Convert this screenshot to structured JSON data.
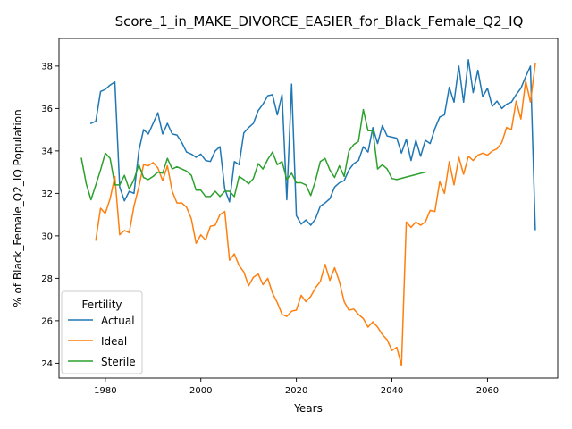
{
  "chart_data": {
    "type": "line",
    "title": "Score_1_in_MAKE_DIVORCE_EASIER_for_Black_Female_Q2_IQ",
    "xlabel": "Years",
    "ylabel": "% of Black_Female_Q2_IQ Population",
    "xlim": [
      1970.3,
      2074.7
    ],
    "ylim": [
      23.3,
      39.3
    ],
    "xticks": [
      1980,
      2000,
      2020,
      2040,
      2060
    ],
    "yticks": [
      24,
      26,
      28,
      30,
      32,
      34,
      36,
      38
    ],
    "grid": false,
    "legend": {
      "title": "Fertility",
      "placement": "lower-left"
    },
    "series": [
      {
        "name": "Actual",
        "color": "#1f77b4",
        "points": [
          [
            1977,
            35.3
          ],
          [
            1978,
            35.4
          ],
          [
            1979,
            36.8
          ],
          [
            1980,
            36.9
          ],
          [
            1981,
            37.1
          ],
          [
            1982,
            37.25
          ],
          [
            1983,
            32.3
          ],
          [
            1984,
            31.65
          ],
          [
            1985,
            32.1
          ],
          [
            1986,
            32.0
          ],
          [
            1987,
            34.0
          ],
          [
            1988,
            35.0
          ],
          [
            1989,
            34.8
          ],
          [
            1990,
            35.3
          ],
          [
            1991,
            35.8
          ],
          [
            1992,
            34.8
          ],
          [
            1993,
            35.3
          ],
          [
            1994,
            34.8
          ],
          [
            1995,
            34.75
          ],
          [
            1996,
            34.4
          ],
          [
            1997,
            33.95
          ],
          [
            1998,
            33.85
          ],
          [
            1999,
            33.7
          ],
          [
            2000,
            33.85
          ],
          [
            2001,
            33.55
          ],
          [
            2002,
            33.5
          ],
          [
            2003,
            34.0
          ],
          [
            2004,
            34.2
          ],
          [
            2005,
            32.2
          ],
          [
            2006,
            31.6
          ],
          [
            2007,
            33.5
          ],
          [
            2008,
            33.35
          ],
          [
            2009,
            34.85
          ],
          [
            2010,
            35.1
          ],
          [
            2011,
            35.3
          ],
          [
            2012,
            35.9
          ],
          [
            2013,
            36.2
          ],
          [
            2014,
            36.6
          ],
          [
            2015,
            36.65
          ],
          [
            2016,
            35.7
          ],
          [
            2017,
            36.65
          ],
          [
            2018,
            31.7
          ],
          [
            2019,
            37.15
          ],
          [
            2020,
            30.95
          ],
          [
            2021,
            30.55
          ],
          [
            2022,
            30.75
          ],
          [
            2023,
            30.5
          ],
          [
            2024,
            30.8
          ],
          [
            2025,
            31.4
          ],
          [
            2026,
            31.55
          ],
          [
            2027,
            31.75
          ],
          [
            2028,
            32.3
          ],
          [
            2029,
            32.5
          ],
          [
            2030,
            32.6
          ],
          [
            2031,
            33.1
          ],
          [
            2032,
            33.4
          ],
          [
            2033,
            33.55
          ],
          [
            2034,
            34.2
          ],
          [
            2035,
            33.95
          ],
          [
            2036,
            35.1
          ],
          [
            2037,
            34.35
          ],
          [
            2038,
            35.2
          ],
          [
            2039,
            34.7
          ],
          [
            2040,
            34.65
          ],
          [
            2041,
            34.6
          ],
          [
            2042,
            33.9
          ],
          [
            2043,
            34.55
          ],
          [
            2044,
            33.55
          ],
          [
            2045,
            34.5
          ],
          [
            2046,
            33.75
          ],
          [
            2047,
            34.5
          ],
          [
            2048,
            34.35
          ],
          [
            2049,
            35.05
          ],
          [
            2050,
            35.6
          ],
          [
            2051,
            35.7
          ],
          [
            2052,
            37.0
          ],
          [
            2053,
            36.3
          ],
          [
            2054,
            38.0
          ],
          [
            2055,
            36.3
          ],
          [
            2056,
            38.3
          ],
          [
            2057,
            36.75
          ],
          [
            2058,
            37.8
          ],
          [
            2059,
            36.55
          ],
          [
            2060,
            36.95
          ],
          [
            2061,
            36.1
          ],
          [
            2062,
            36.35
          ],
          [
            2063,
            36.0
          ],
          [
            2064,
            36.2
          ],
          [
            2065,
            36.3
          ],
          [
            2066,
            36.65
          ],
          [
            2067,
            36.95
          ],
          [
            2068,
            37.5
          ],
          [
            2069,
            38.0
          ],
          [
            2070,
            30.3
          ]
        ]
      },
      {
        "name": "Ideal",
        "color": "#ff7f0e",
        "points": [
          [
            1978,
            29.8
          ],
          [
            1979,
            31.3
          ],
          [
            1980,
            31.05
          ],
          [
            1981,
            31.75
          ],
          [
            1982,
            32.8
          ],
          [
            1983,
            30.05
          ],
          [
            1984,
            30.25
          ],
          [
            1985,
            30.15
          ],
          [
            1986,
            31.4
          ],
          [
            1987,
            32.3
          ],
          [
            1988,
            33.35
          ],
          [
            1989,
            33.3
          ],
          [
            1990,
            33.45
          ],
          [
            1991,
            33.2
          ],
          [
            1992,
            32.6
          ],
          [
            1993,
            33.3
          ],
          [
            1994,
            32.1
          ],
          [
            1995,
            31.55
          ],
          [
            1996,
            31.55
          ],
          [
            1997,
            31.35
          ],
          [
            1998,
            30.8
          ],
          [
            1999,
            29.65
          ],
          [
            2000,
            30.05
          ],
          [
            2001,
            29.8
          ],
          [
            2002,
            30.45
          ],
          [
            2003,
            30.5
          ],
          [
            2004,
            31.0
          ],
          [
            2005,
            31.15
          ],
          [
            2006,
            28.85
          ],
          [
            2007,
            29.15
          ],
          [
            2008,
            28.6
          ],
          [
            2009,
            28.3
          ],
          [
            2010,
            27.65
          ],
          [
            2011,
            28.05
          ],
          [
            2012,
            28.2
          ],
          [
            2013,
            27.7
          ],
          [
            2014,
            28.0
          ],
          [
            2015,
            27.3
          ],
          [
            2016,
            26.85
          ],
          [
            2017,
            26.3
          ],
          [
            2018,
            26.2
          ],
          [
            2019,
            26.45
          ],
          [
            2020,
            26.5
          ],
          [
            2021,
            27.2
          ],
          [
            2022,
            26.9
          ],
          [
            2023,
            27.15
          ],
          [
            2024,
            27.55
          ],
          [
            2025,
            27.85
          ],
          [
            2026,
            28.65
          ],
          [
            2027,
            27.9
          ],
          [
            2028,
            28.5
          ],
          [
            2029,
            27.85
          ],
          [
            2030,
            26.9
          ],
          [
            2031,
            26.5
          ],
          [
            2032,
            26.55
          ],
          [
            2033,
            26.3
          ],
          [
            2034,
            26.1
          ],
          [
            2035,
            25.7
          ],
          [
            2036,
            25.95
          ],
          [
            2037,
            25.7
          ],
          [
            2038,
            25.35
          ],
          [
            2039,
            25.1
          ],
          [
            2040,
            24.6
          ],
          [
            2041,
            24.75
          ],
          [
            2042,
            23.9
          ],
          [
            2043,
            30.65
          ],
          [
            2044,
            30.4
          ],
          [
            2045,
            30.65
          ],
          [
            2046,
            30.5
          ],
          [
            2047,
            30.65
          ],
          [
            2048,
            31.2
          ],
          [
            2049,
            31.15
          ],
          [
            2050,
            32.55
          ],
          [
            2051,
            32.0
          ],
          [
            2052,
            33.5
          ],
          [
            2053,
            32.4
          ],
          [
            2054,
            33.7
          ],
          [
            2055,
            32.9
          ],
          [
            2056,
            33.75
          ],
          [
            2057,
            33.55
          ],
          [
            2058,
            33.8
          ],
          [
            2059,
            33.9
          ],
          [
            2060,
            33.8
          ],
          [
            2061,
            34.0
          ],
          [
            2062,
            34.1
          ],
          [
            2063,
            34.4
          ],
          [
            2064,
            35.1
          ],
          [
            2065,
            35.0
          ],
          [
            2066,
            36.35
          ],
          [
            2067,
            35.5
          ],
          [
            2068,
            37.3
          ],
          [
            2069,
            36.3
          ],
          [
            2070,
            38.1
          ]
        ]
      },
      {
        "name": "Sterile",
        "color": "#2ca02c",
        "points": [
          [
            1975,
            33.65
          ],
          [
            1976,
            32.45
          ],
          [
            1977,
            31.7
          ],
          [
            1978,
            32.4
          ],
          [
            1979,
            33.1
          ],
          [
            1980,
            33.9
          ],
          [
            1981,
            33.65
          ],
          [
            1982,
            32.4
          ],
          [
            1983,
            32.4
          ],
          [
            1984,
            32.85
          ],
          [
            1985,
            32.2
          ],
          [
            1986,
            32.65
          ],
          [
            1987,
            33.35
          ],
          [
            1988,
            32.75
          ],
          [
            1989,
            32.65
          ],
          [
            1990,
            32.8
          ],
          [
            1991,
            33.0
          ],
          [
            1992,
            32.95
          ],
          [
            1993,
            33.65
          ],
          [
            1994,
            33.15
          ],
          [
            1995,
            33.25
          ],
          [
            1996,
            33.15
          ],
          [
            1997,
            33.05
          ],
          [
            1998,
            32.85
          ],
          [
            1999,
            32.15
          ],
          [
            2000,
            32.15
          ],
          [
            2001,
            31.85
          ],
          [
            2002,
            31.85
          ],
          [
            2003,
            32.1
          ],
          [
            2004,
            31.85
          ],
          [
            2005,
            32.1
          ],
          [
            2006,
            32.1
          ],
          [
            2007,
            31.85
          ],
          [
            2008,
            32.8
          ],
          [
            2009,
            32.65
          ],
          [
            2010,
            32.45
          ],
          [
            2011,
            32.7
          ],
          [
            2012,
            33.4
          ],
          [
            2013,
            33.15
          ],
          [
            2014,
            33.6
          ],
          [
            2015,
            33.95
          ],
          [
            2016,
            33.35
          ],
          [
            2017,
            33.5
          ],
          [
            2018,
            32.65
          ],
          [
            2019,
            32.95
          ],
          [
            2020,
            32.5
          ],
          [
            2021,
            32.5
          ],
          [
            2022,
            32.4
          ],
          [
            2023,
            31.9
          ],
          [
            2024,
            32.6
          ],
          [
            2025,
            33.5
          ],
          [
            2026,
            33.65
          ],
          [
            2027,
            33.1
          ],
          [
            2028,
            32.75
          ],
          [
            2029,
            33.3
          ],
          [
            2030,
            32.8
          ],
          [
            2031,
            34.0
          ],
          [
            2032,
            34.3
          ],
          [
            2033,
            34.45
          ],
          [
            2034,
            35.95
          ],
          [
            2035,
            34.95
          ],
          [
            2036,
            34.95
          ],
          [
            2037,
            33.15
          ],
          [
            2038,
            33.35
          ],
          [
            2039,
            33.15
          ],
          [
            2040,
            32.7
          ],
          [
            2041,
            32.65
          ],
          [
            2047,
            33.0
          ]
        ]
      }
    ]
  }
}
